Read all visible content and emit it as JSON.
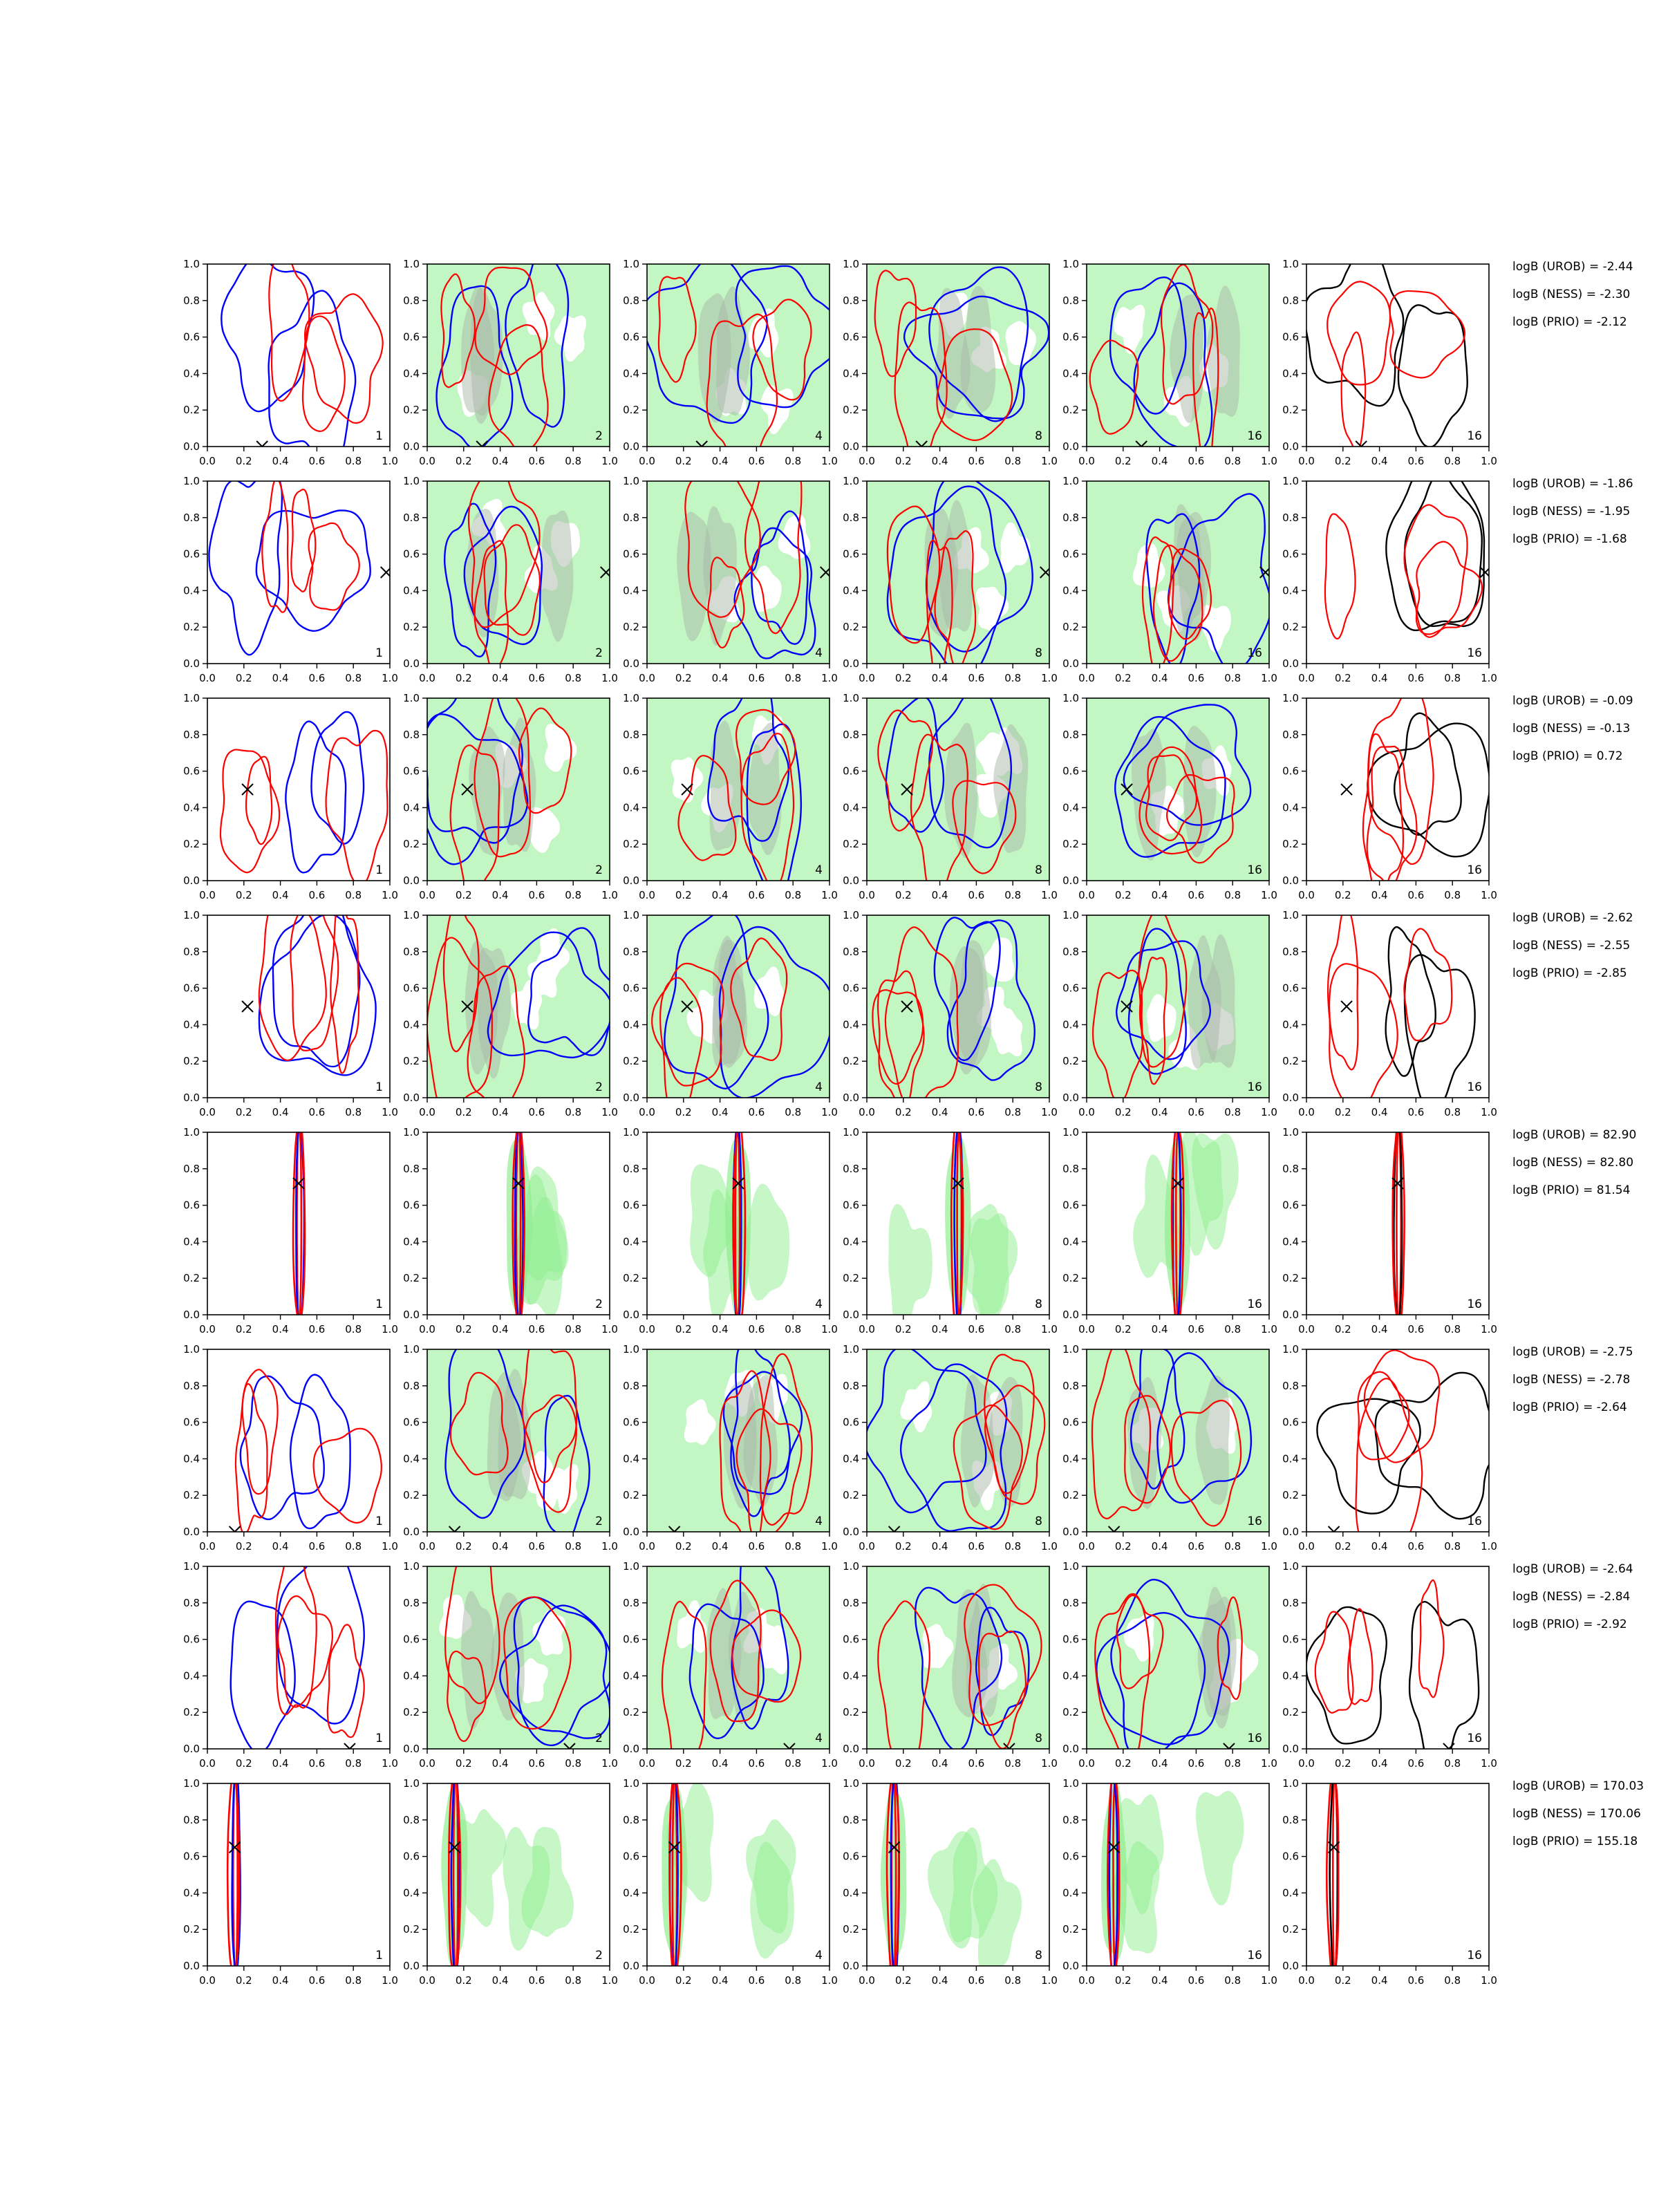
{
  "chart_data": {
    "type": "contour-grid",
    "title": "",
    "xlim": [
      0.0,
      1.0
    ],
    "ylim": [
      0.0,
      1.0
    ],
    "x_ticks": [
      "0.0",
      "0.2",
      "0.4",
      "0.6",
      "0.8",
      "1.0"
    ],
    "y_ticks": [
      "0.0",
      "0.2",
      "0.4",
      "0.6",
      "0.8",
      "1.0"
    ],
    "grid": false,
    "column_labels": [
      "1",
      "2",
      "4",
      "8",
      "16",
      "16"
    ],
    "colors": {
      "blue": "#0000ff",
      "red": "#ff0000",
      "black": "#000000",
      "green_fill": "#90ee90",
      "gray_fill": "#a8b8a8"
    },
    "rows": [
      {
        "marker": [
          0.3,
          0.0
        ],
        "logB": [
          "logB (UROB) = -2.44",
          "logB (NESS) = -2.30",
          "logB (PRIO) = -2.12"
        ]
      },
      {
        "marker": [
          0.98,
          0.5
        ],
        "logB": [
          "logB (UROB) = -1.86",
          "logB (NESS) = -1.95",
          "logB (PRIO) = -1.68"
        ]
      },
      {
        "marker": [
          0.22,
          0.5
        ],
        "logB": [
          "logB (UROB) = -0.09",
          "logB (NESS) = -0.13",
          "logB (PRIO) = 0.72"
        ]
      },
      {
        "marker": [
          0.22,
          0.5
        ],
        "logB": [
          "logB (UROB) = -2.62",
          "logB (NESS) = -2.55",
          "logB (PRIO) = -2.85"
        ]
      },
      {
        "marker": [
          0.5,
          0.72
        ],
        "logB": [
          "logB (UROB) = 82.90",
          "logB (NESS) = 82.80",
          "logB (PRIO) = 81.54"
        ]
      },
      {
        "marker": [
          0.15,
          0.0
        ],
        "logB": [
          "logB (UROB) = -2.75",
          "logB (NESS) = -2.78",
          "logB (PRIO) = -2.64"
        ]
      },
      {
        "marker": [
          0.78,
          0.0
        ],
        "logB": [
          "logB (UROB) = -2.64",
          "logB (NESS) = -2.84",
          "logB (PRIO) = -2.92"
        ]
      },
      {
        "marker": [
          0.15,
          0.65
        ],
        "logB": [
          "logB (UROB) = 170.03",
          "logB (NESS) = 170.06",
          "logB (PRIO) = 155.18"
        ]
      }
    ]
  }
}
